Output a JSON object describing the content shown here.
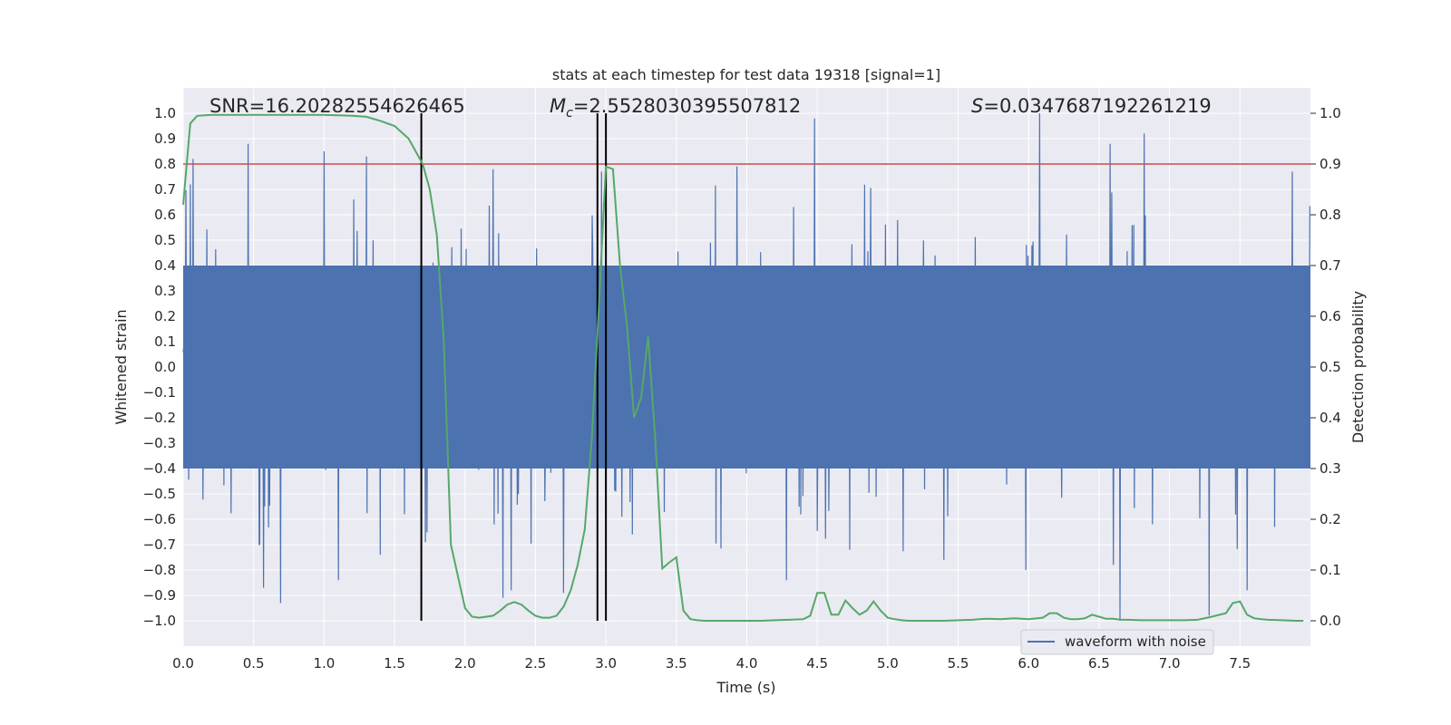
{
  "chart_data": {
    "type": "line",
    "title": "stats at each timestep for test data 19318 [signal=1]",
    "xlabel": "Time (s)",
    "ylabel": "Whitened strain",
    "ylabel_right": "Detection probability",
    "xlim": [
      0.0,
      8.0
    ],
    "ylim": [
      -1.1,
      1.1
    ],
    "ylim_right": [
      -0.05,
      1.05
    ],
    "x_ticks": [
      "0.0",
      "0.5",
      "1.0",
      "1.5",
      "2.0",
      "2.5",
      "3.0",
      "3.5",
      "4.0",
      "4.5",
      "5.0",
      "5.5",
      "6.0",
      "6.5",
      "7.0",
      "7.5"
    ],
    "y_ticks": [
      "1.0",
      "0.9",
      "0.8",
      "0.7",
      "0.6",
      "0.5",
      "0.4",
      "0.3",
      "0.2",
      "0.1",
      "0.0",
      "-0.1",
      "-0.2",
      "-0.3",
      "-0.4",
      "-0.5",
      "-0.6",
      "-0.7",
      "-0.8",
      "-0.9",
      "-1.0"
    ],
    "y_right_ticks": [
      "1.0",
      "0.9",
      "0.8",
      "0.7",
      "0.6",
      "0.5",
      "0.4",
      "0.3",
      "0.2",
      "0.1",
      "0.0"
    ],
    "grid": true,
    "legend": {
      "position": "lower-right",
      "entries": [
        "waveform with noise"
      ]
    },
    "annotations": {
      "snr": "SNR=16.20282554626465",
      "mc_symbol": "M",
      "mc_subscript": "c",
      "mc_value": "=2.5528030395507812",
      "s_symbol": "S",
      "s_value": "=0.0347687192261219"
    },
    "threshold_right": 0.9,
    "vertical_lines_x": [
      1.69,
      2.94,
      3.0
    ],
    "series": [
      {
        "name": "waveform with noise",
        "color": "#4c72b0",
        "axis": "left",
        "description": "dense whitened-strain noise, range approx -1.0 to 1.0",
        "sample_rate": 256,
        "core_amplitude": 0.4,
        "spikes": [
          [
            0.05,
            0.72
          ],
          [
            0.07,
            0.82
          ],
          [
            0.46,
            0.88
          ],
          [
            0.57,
            -0.87
          ],
          [
            0.69,
            -0.93
          ],
          [
            1.0,
            0.85
          ],
          [
            1.1,
            -0.84
          ],
          [
            1.3,
            0.83
          ],
          [
            1.4,
            -0.74
          ],
          [
            1.57,
            -0.58
          ],
          [
            1.72,
            -0.69
          ],
          [
            2.2,
            0.78
          ],
          [
            2.27,
            -0.91
          ],
          [
            2.33,
            -0.88
          ],
          [
            2.7,
            -0.89
          ],
          [
            2.97,
            0.77
          ],
          [
            3.0,
            -0.72
          ],
          [
            3.93,
            0.79
          ],
          [
            4.28,
            -0.84
          ],
          [
            4.48,
            0.98
          ],
          [
            4.73,
            -0.72
          ],
          [
            5.4,
            -0.76
          ],
          [
            5.98,
            -0.8
          ],
          [
            6.08,
            1.0
          ],
          [
            6.58,
            0.88
          ],
          [
            6.6,
            -0.78
          ],
          [
            6.65,
            -1.0
          ],
          [
            6.82,
            0.92
          ],
          [
            7.28,
            -0.98
          ],
          [
            7.55,
            -0.88
          ],
          [
            7.87,
            0.77
          ]
        ]
      },
      {
        "name": "",
        "color": "#55a868",
        "axis": "right",
        "x": [
          0.0,
          0.05,
          0.1,
          0.2,
          0.3,
          0.4,
          0.5,
          0.6,
          0.7,
          0.8,
          0.9,
          1.0,
          1.1,
          1.2,
          1.3,
          1.4,
          1.5,
          1.6,
          1.7,
          1.75,
          1.8,
          1.85,
          1.9,
          2.0,
          2.05,
          2.1,
          2.15,
          2.2,
          2.25,
          2.3,
          2.35,
          2.4,
          2.45,
          2.5,
          2.55,
          2.6,
          2.65,
          2.7,
          2.75,
          2.8,
          2.85,
          2.9,
          2.95,
          3.0,
          3.05,
          3.1,
          3.15,
          3.2,
          3.25,
          3.3,
          3.35,
          3.4,
          3.45,
          3.5,
          3.55,
          3.6,
          3.65,
          3.7,
          3.8,
          3.9,
          4.0,
          4.1,
          4.2,
          4.3,
          4.4,
          4.45,
          4.5,
          4.55,
          4.6,
          4.65,
          4.7,
          4.75,
          4.8,
          4.85,
          4.9,
          4.95,
          5.0,
          5.05,
          5.1,
          5.15,
          5.2,
          5.3,
          5.4,
          5.5,
          5.6,
          5.7,
          5.8,
          5.9,
          6.0,
          6.1,
          6.15,
          6.2,
          6.25,
          6.3,
          6.35,
          6.4,
          6.45,
          6.5,
          6.55,
          6.6,
          6.65,
          6.7,
          6.8,
          6.9,
          7.0,
          7.1,
          7.2,
          7.3,
          7.4,
          7.45,
          7.5,
          7.55,
          7.6,
          7.65,
          7.7,
          7.8,
          7.9,
          7.95
        ],
        "y": [
          0.82,
          0.98,
          0.995,
          0.997,
          0.997,
          0.997,
          0.997,
          0.997,
          0.997,
          0.997,
          0.997,
          0.997,
          0.996,
          0.995,
          0.993,
          0.985,
          0.975,
          0.95,
          0.9,
          0.85,
          0.76,
          0.55,
          0.15,
          0.025,
          0.008,
          0.006,
          0.008,
          0.01,
          0.02,
          0.032,
          0.037,
          0.032,
          0.02,
          0.01,
          0.006,
          0.006,
          0.01,
          0.028,
          0.06,
          0.11,
          0.18,
          0.36,
          0.62,
          0.895,
          0.89,
          0.7,
          0.58,
          0.4,
          0.44,
          0.56,
          0.36,
          0.103,
          0.115,
          0.125,
          0.02,
          0.003,
          0.001,
          0.0,
          0.0,
          0.0,
          0.0,
          0.0,
          0.001,
          0.002,
          0.003,
          0.01,
          0.055,
          0.055,
          0.012,
          0.012,
          0.04,
          0.025,
          0.012,
          0.02,
          0.038,
          0.02,
          0.006,
          0.003,
          0.001,
          0.0,
          0.0,
          0.0,
          0.0,
          0.001,
          0.002,
          0.004,
          0.003,
          0.005,
          0.003,
          0.006,
          0.015,
          0.015,
          0.006,
          0.003,
          0.003,
          0.005,
          0.012,
          0.008,
          0.004,
          0.004,
          0.002,
          0.002,
          0.001,
          0.001,
          0.001,
          0.001,
          0.002,
          0.008,
          0.015,
          0.035,
          0.038,
          0.012,
          0.005,
          0.003,
          0.002,
          0.001,
          0.0,
          0.0
        ]
      }
    ]
  }
}
